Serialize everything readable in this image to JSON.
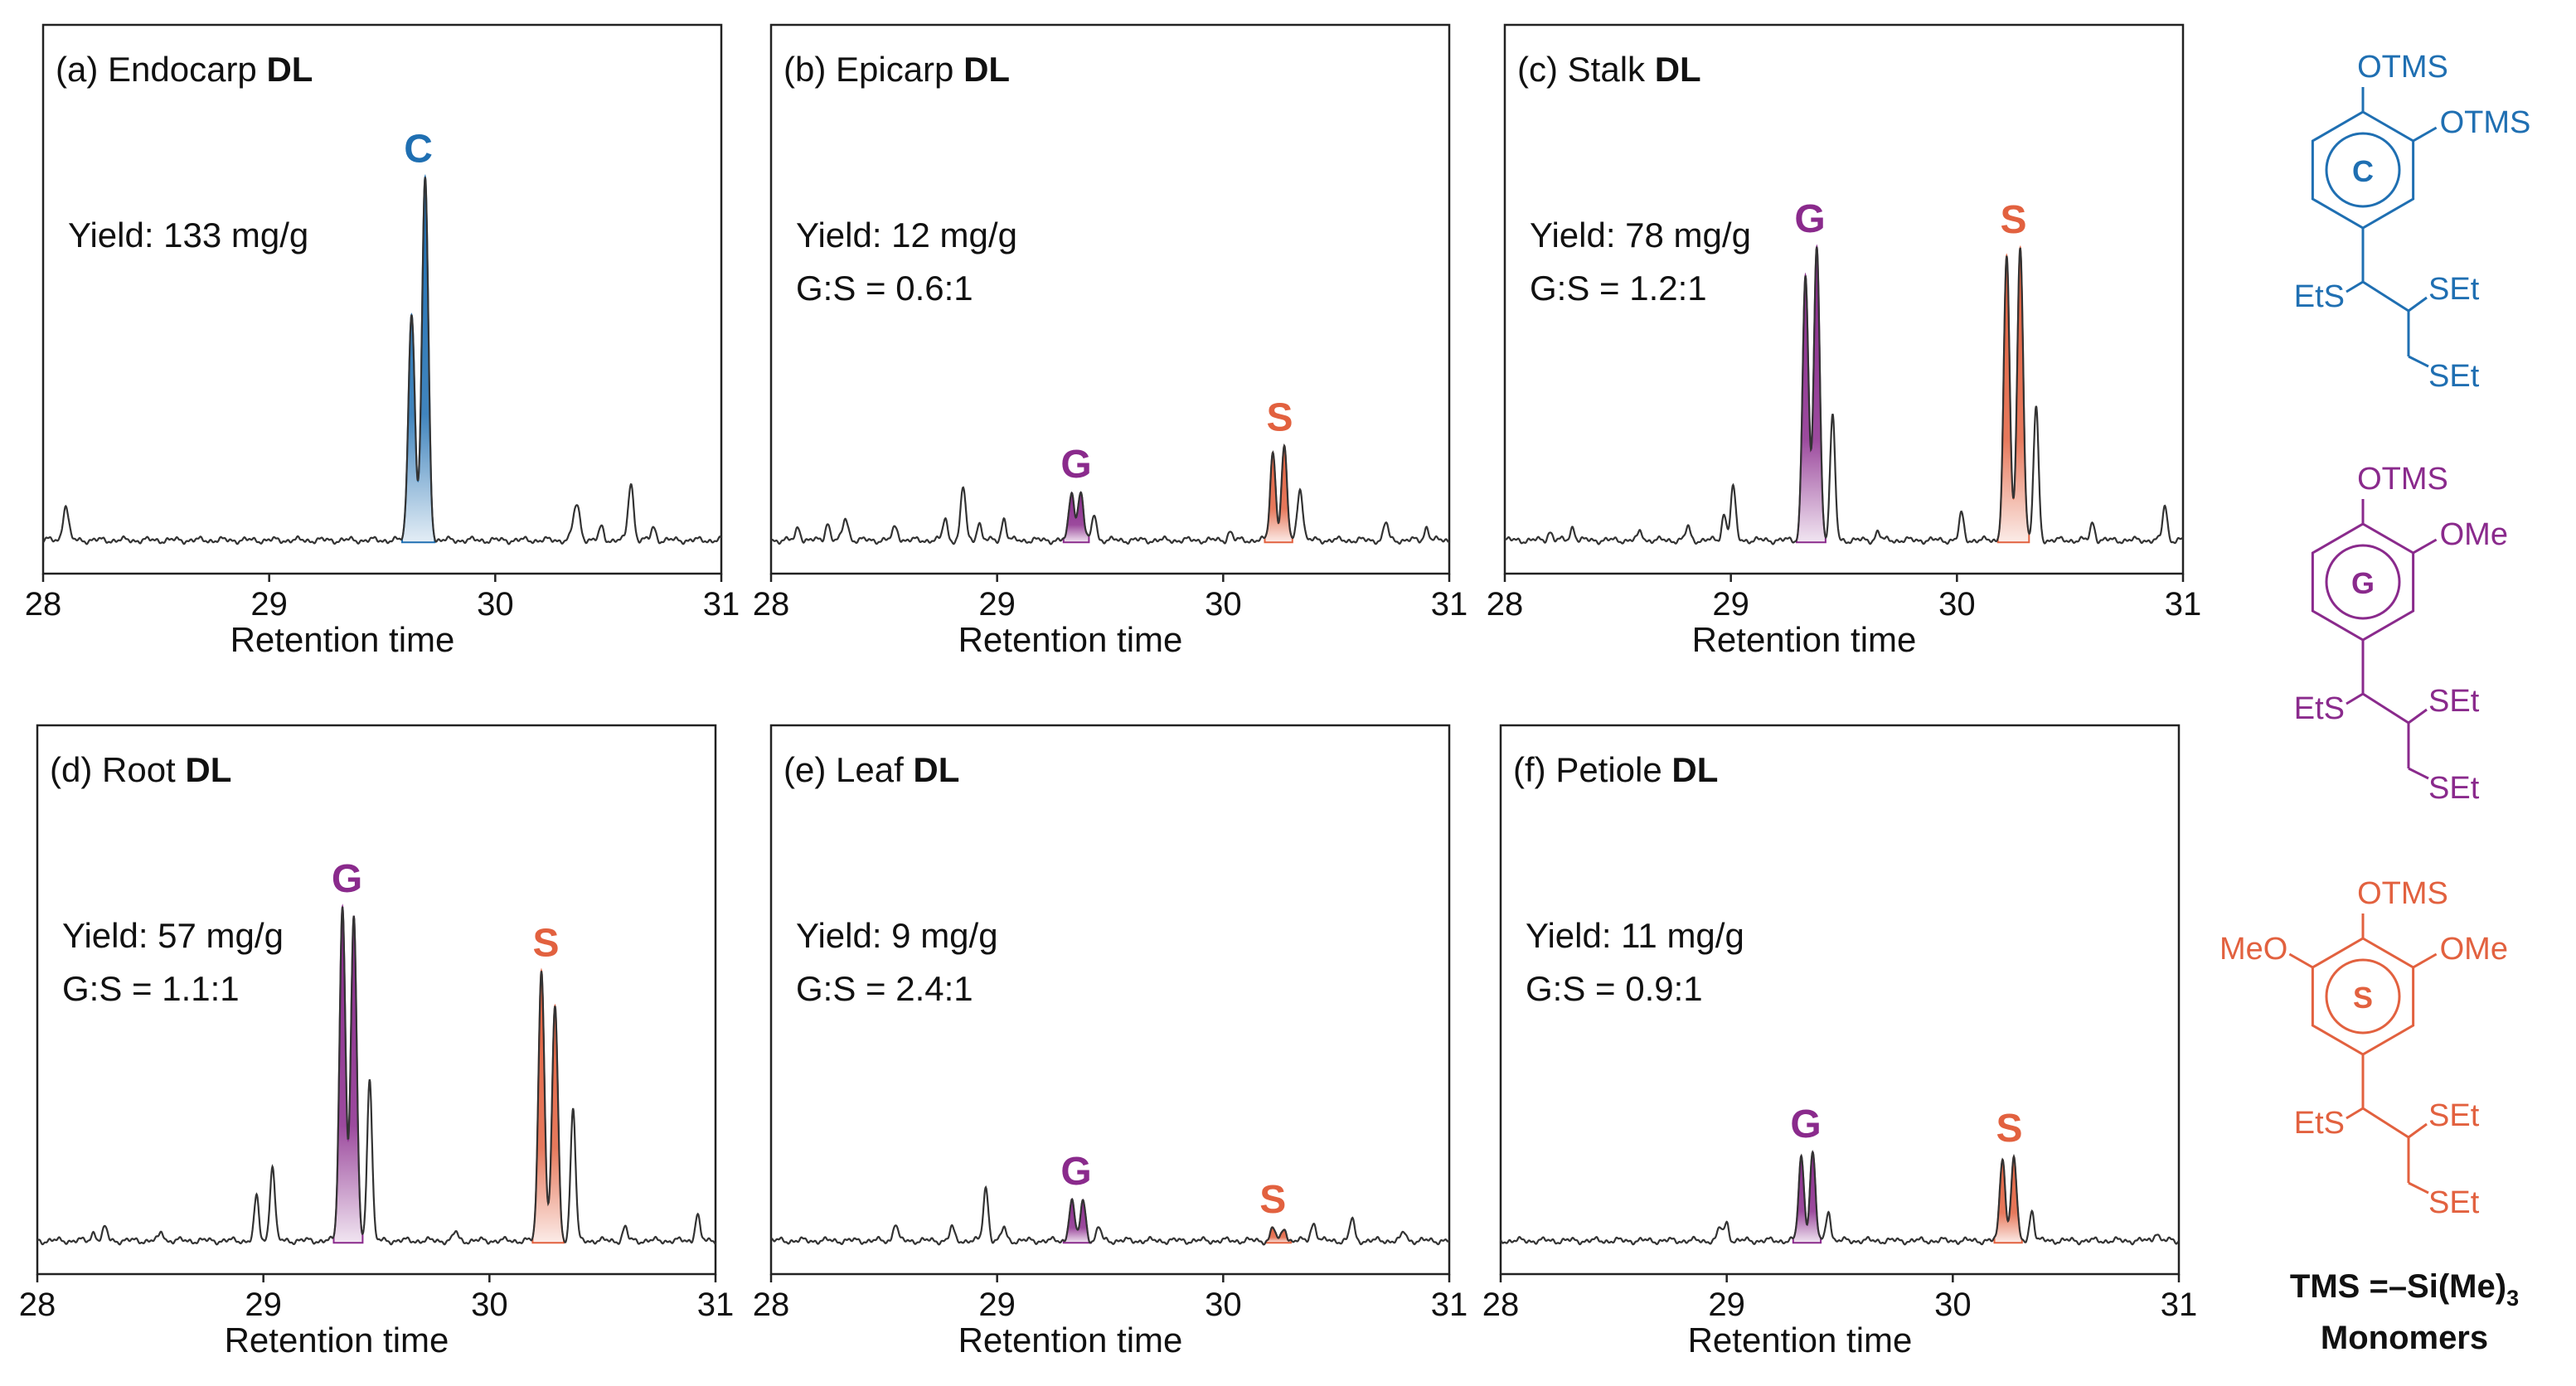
{
  "colors": {
    "C": "#1f6fb2",
    "G": "#8a2a8c",
    "S": "#e2613f",
    "trace": "#333333"
  },
  "chart_data": [
    {
      "type": "line",
      "panel": "(a)",
      "title": "Endocarp",
      "title_bold": "DL",
      "xlabel": "Retention time",
      "xlim": [
        28,
        31
      ],
      "xticks": [
        "28",
        "29",
        "30",
        "31"
      ],
      "annotations": [
        "Yield: 133 mg/g"
      ],
      "peaks": [
        {
          "x": 28.1,
          "h": 0.08,
          "w": 0.012,
          "c": null
        },
        {
          "x": 29.63,
          "h": 0.52,
          "w": 0.014,
          "c": "C"
        },
        {
          "x": 29.69,
          "h": 0.82,
          "w": 0.014,
          "c": "C"
        },
        {
          "x": 30.36,
          "h": 0.08,
          "w": 0.015,
          "c": null
        },
        {
          "x": 30.47,
          "h": 0.03,
          "w": 0.01,
          "c": null
        },
        {
          "x": 30.6,
          "h": 0.13,
          "w": 0.012,
          "c": null
        },
        {
          "x": 30.7,
          "h": 0.03,
          "w": 0.01,
          "c": null
        }
      ],
      "peak_labels": [
        {
          "text": "C",
          "x": 29.66,
          "series": "C"
        }
      ]
    },
    {
      "type": "line",
      "panel": "(b)",
      "title": "Epicarp",
      "title_bold": "DL",
      "xlabel": "Retention time",
      "xlim": [
        28,
        31
      ],
      "xticks": [
        "28",
        "29",
        "30",
        "31"
      ],
      "annotations": [
        "Yield: 12 mg/g",
        "G:S = 0.6:1"
      ],
      "peaks": [
        {
          "x": 28.12,
          "h": 0.03,
          "w": 0.01,
          "c": null
        },
        {
          "x": 28.25,
          "h": 0.04,
          "w": 0.01,
          "c": null
        },
        {
          "x": 28.33,
          "h": 0.05,
          "w": 0.012,
          "c": null
        },
        {
          "x": 28.55,
          "h": 0.03,
          "w": 0.012,
          "c": null
        },
        {
          "x": 28.77,
          "h": 0.05,
          "w": 0.01,
          "c": null
        },
        {
          "x": 28.85,
          "h": 0.12,
          "w": 0.011,
          "c": null
        },
        {
          "x": 28.92,
          "h": 0.04,
          "w": 0.01,
          "c": null
        },
        {
          "x": 29.03,
          "h": 0.05,
          "w": 0.01,
          "c": null
        },
        {
          "x": 29.33,
          "h": 0.11,
          "w": 0.012,
          "c": "G"
        },
        {
          "x": 29.37,
          "h": 0.11,
          "w": 0.012,
          "c": "G"
        },
        {
          "x": 29.43,
          "h": 0.06,
          "w": 0.01,
          "c": null
        },
        {
          "x": 30.03,
          "h": 0.02,
          "w": 0.01,
          "c": null
        },
        {
          "x": 30.22,
          "h": 0.2,
          "w": 0.012,
          "c": "S"
        },
        {
          "x": 30.27,
          "h": 0.21,
          "w": 0.012,
          "c": "S"
        },
        {
          "x": 30.34,
          "h": 0.12,
          "w": 0.012,
          "c": null
        },
        {
          "x": 30.72,
          "h": 0.04,
          "w": 0.01,
          "c": null
        },
        {
          "x": 30.9,
          "h": 0.03,
          "w": 0.01,
          "c": null
        }
      ],
      "peak_labels": [
        {
          "text": "G",
          "x": 29.35,
          "series": "G"
        },
        {
          "text": "S",
          "x": 30.25,
          "series": "S"
        }
      ]
    },
    {
      "type": "line",
      "panel": "(c)",
      "title": "Stalk",
      "title_bold": "DL",
      "xlabel": "Retention time",
      "xlim": [
        28,
        31
      ],
      "xticks": [
        "28",
        "29",
        "30",
        "31"
      ],
      "annotations": [
        "Yield: 78 mg/g",
        "G:S = 1.2:1"
      ],
      "peaks": [
        {
          "x": 28.2,
          "h": 0.02,
          "w": 0.01,
          "c": null
        },
        {
          "x": 28.3,
          "h": 0.03,
          "w": 0.01,
          "c": null
        },
        {
          "x": 28.6,
          "h": 0.02,
          "w": 0.01,
          "c": null
        },
        {
          "x": 28.81,
          "h": 0.03,
          "w": 0.01,
          "c": null
        },
        {
          "x": 28.97,
          "h": 0.06,
          "w": 0.01,
          "c": null
        },
        {
          "x": 29.01,
          "h": 0.12,
          "w": 0.011,
          "c": null
        },
        {
          "x": 29.33,
          "h": 0.6,
          "w": 0.013,
          "c": "G"
        },
        {
          "x": 29.38,
          "h": 0.67,
          "w": 0.013,
          "c": "G"
        },
        {
          "x": 29.45,
          "h": 0.28,
          "w": 0.011,
          "c": null
        },
        {
          "x": 29.65,
          "h": 0.02,
          "w": 0.01,
          "c": null
        },
        {
          "x": 30.02,
          "h": 0.06,
          "w": 0.01,
          "c": null
        },
        {
          "x": 30.22,
          "h": 0.64,
          "w": 0.013,
          "c": "S"
        },
        {
          "x": 30.28,
          "h": 0.67,
          "w": 0.013,
          "c": "S"
        },
        {
          "x": 30.35,
          "h": 0.3,
          "w": 0.011,
          "c": null
        },
        {
          "x": 30.6,
          "h": 0.04,
          "w": 0.01,
          "c": null
        },
        {
          "x": 30.92,
          "h": 0.08,
          "w": 0.01,
          "c": null
        }
      ],
      "peak_labels": [
        {
          "text": "G",
          "x": 29.35,
          "series": "G"
        },
        {
          "text": "S",
          "x": 30.25,
          "series": "S"
        }
      ]
    },
    {
      "type": "line",
      "panel": "(d)",
      "title": "Root",
      "title_bold": "DL",
      "xlabel": "Retention time",
      "xlim": [
        28,
        31
      ],
      "xticks": [
        "28",
        "29",
        "30",
        "31"
      ],
      "annotations": [
        "Yield: 57 mg/g",
        "G:S = 1.1:1"
      ],
      "peaks": [
        {
          "x": 28.25,
          "h": 0.02,
          "w": 0.01,
          "c": null
        },
        {
          "x": 28.3,
          "h": 0.03,
          "w": 0.01,
          "c": null
        },
        {
          "x": 28.55,
          "h": 0.02,
          "w": 0.01,
          "c": null
        },
        {
          "x": 28.97,
          "h": 0.1,
          "w": 0.01,
          "c": null
        },
        {
          "x": 29.04,
          "h": 0.17,
          "w": 0.011,
          "c": null
        },
        {
          "x": 29.35,
          "h": 0.76,
          "w": 0.013,
          "c": "G"
        },
        {
          "x": 29.4,
          "h": 0.73,
          "w": 0.013,
          "c": "G"
        },
        {
          "x": 29.47,
          "h": 0.37,
          "w": 0.011,
          "c": null
        },
        {
          "x": 29.85,
          "h": 0.02,
          "w": 0.01,
          "c": null
        },
        {
          "x": 30.23,
          "h": 0.62,
          "w": 0.013,
          "c": "S"
        },
        {
          "x": 30.29,
          "h": 0.53,
          "w": 0.013,
          "c": "S"
        },
        {
          "x": 30.37,
          "h": 0.3,
          "w": 0.011,
          "c": null
        },
        {
          "x": 30.6,
          "h": 0.03,
          "w": 0.01,
          "c": null
        },
        {
          "x": 30.92,
          "h": 0.06,
          "w": 0.01,
          "c": null
        }
      ],
      "peak_labels": [
        {
          "text": "G",
          "x": 29.37,
          "series": "G"
        },
        {
          "text": "S",
          "x": 30.25,
          "series": "S"
        }
      ]
    },
    {
      "type": "line",
      "panel": "(e)",
      "title": "Leaf",
      "title_bold": "DL",
      "xlabel": "Retention time",
      "xlim": [
        28,
        31
      ],
      "xticks": [
        "28",
        "29",
        "30",
        "31"
      ],
      "annotations": [
        "Yield: 9 mg/g",
        "G:S = 2.4:1"
      ],
      "peaks": [
        {
          "x": 28.55,
          "h": 0.04,
          "w": 0.01,
          "c": null
        },
        {
          "x": 28.8,
          "h": 0.03,
          "w": 0.01,
          "c": null
        },
        {
          "x": 28.95,
          "h": 0.12,
          "w": 0.011,
          "c": null
        },
        {
          "x": 29.03,
          "h": 0.03,
          "w": 0.01,
          "c": null
        },
        {
          "x": 29.33,
          "h": 0.09,
          "w": 0.012,
          "c": "G"
        },
        {
          "x": 29.38,
          "h": 0.09,
          "w": 0.012,
          "c": "G"
        },
        {
          "x": 29.45,
          "h": 0.03,
          "w": 0.01,
          "c": null
        },
        {
          "x": 30.22,
          "h": 0.03,
          "w": 0.01,
          "c": "S"
        },
        {
          "x": 30.27,
          "h": 0.03,
          "w": 0.01,
          "c": "S"
        },
        {
          "x": 30.4,
          "h": 0.04,
          "w": 0.012,
          "c": null
        },
        {
          "x": 30.57,
          "h": 0.05,
          "w": 0.01,
          "c": null
        },
        {
          "x": 30.8,
          "h": 0.02,
          "w": 0.01,
          "c": null
        }
      ],
      "peak_labels": [
        {
          "text": "G",
          "x": 29.35,
          "series": "G"
        },
        {
          "text": "S",
          "x": 30.22,
          "series": "S"
        }
      ]
    },
    {
      "type": "line",
      "panel": "(f)",
      "title": "Petiole",
      "title_bold": "DL",
      "xlabel": "Retention time",
      "xlim": [
        28,
        31
      ],
      "xticks": [
        "28",
        "29",
        "30",
        "31"
      ],
      "annotations": [
        "Yield: 11 mg/g",
        "G:S = 0.9:1"
      ],
      "peaks": [
        {
          "x": 28.97,
          "h": 0.03,
          "w": 0.01,
          "c": null
        },
        {
          "x": 29.0,
          "h": 0.04,
          "w": 0.01,
          "c": null
        },
        {
          "x": 29.33,
          "h": 0.19,
          "w": 0.012,
          "c": "G"
        },
        {
          "x": 29.38,
          "h": 0.2,
          "w": 0.012,
          "c": "G"
        },
        {
          "x": 29.45,
          "h": 0.07,
          "w": 0.01,
          "c": null
        },
        {
          "x": 30.22,
          "h": 0.19,
          "w": 0.012,
          "c": "S"
        },
        {
          "x": 30.27,
          "h": 0.19,
          "w": 0.012,
          "c": "S"
        },
        {
          "x": 30.35,
          "h": 0.07,
          "w": 0.01,
          "c": null
        },
        {
          "x": 30.9,
          "h": 0.02,
          "w": 0.01,
          "c": null
        }
      ],
      "peak_labels": [
        {
          "text": "G",
          "x": 29.35,
          "series": "G"
        },
        {
          "text": "S",
          "x": 30.25,
          "series": "S"
        }
      ]
    }
  ],
  "monomers": {
    "items": [
      {
        "key": "C",
        "ring_label": "C",
        "top": "OTMS",
        "right": "OTMS",
        "left": "",
        "chain_left": "EtS",
        "chain_right": "SEt",
        "chain_bottom": "SEt"
      },
      {
        "key": "G",
        "ring_label": "G",
        "top": "OTMS",
        "right": "OMe",
        "left": "",
        "chain_left": "EtS",
        "chain_right": "SEt",
        "chain_bottom": "SEt"
      },
      {
        "key": "S",
        "ring_label": "S",
        "top": "OTMS",
        "right": "OMe",
        "left": "MeO",
        "chain_left": "EtS",
        "chain_right": "SEt",
        "chain_bottom": "SEt"
      }
    ],
    "tms_prefix": "TMS =–Si(Me)",
    "tms_subscript": "3",
    "caption": "Monomers"
  }
}
